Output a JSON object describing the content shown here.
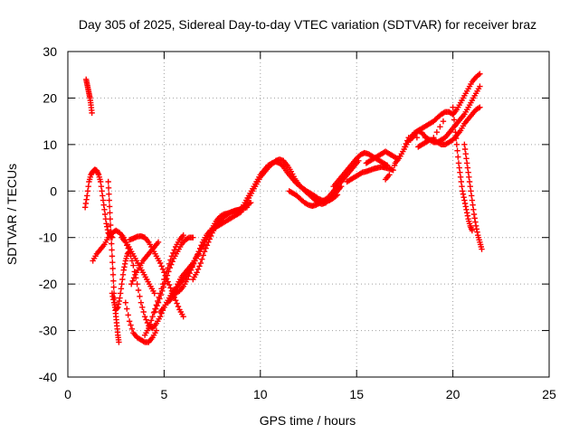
{
  "chart_data": {
    "type": "scatter",
    "title": "Day 305 of 2025, Sidereal Day-to-day VTEC variation (SDTVAR) for receiver braz",
    "xlabel": "GPS time / hours",
    "ylabel": "SDTVAR / TECUs",
    "xlim": [
      0,
      25
    ],
    "ylim": [
      -40,
      30
    ],
    "xticks": [
      0,
      5,
      10,
      15,
      20,
      25
    ],
    "yticks": [
      -40,
      -30,
      -20,
      -10,
      0,
      10,
      20,
      30
    ],
    "grid": true,
    "legend": "none",
    "marker": "+",
    "color": "#ff0000",
    "series": [
      {
        "x": [
          0.95,
          1.0,
          1.05,
          1.1,
          1.15,
          1.2,
          1.25
        ],
        "y": [
          24.0,
          23.0,
          22.0,
          21.0,
          20.0,
          18.5,
          16.8
        ]
      },
      {
        "x": [
          0.9,
          1.0,
          1.1,
          1.2,
          1.3,
          1.4,
          1.5,
          1.6,
          1.7,
          1.8,
          1.9,
          2.0,
          2.1,
          2.2,
          2.3
        ],
        "y": [
          -3.5,
          -1.0,
          2.0,
          3.5,
          4.2,
          4.6,
          4.4,
          3.5,
          2.0,
          -1.0,
          -4.0,
          -7.0,
          -9.0,
          -9.5,
          -10.0
        ]
      },
      {
        "x": [
          1.3,
          1.5,
          1.7,
          1.9,
          2.1,
          2.3,
          2.5,
          2.7,
          2.9,
          3.1,
          3.3,
          3.5,
          3.7,
          3.9,
          4.1,
          4.3,
          4.5
        ],
        "y": [
          -15.0,
          -13.5,
          -12.5,
          -11.5,
          -10.0,
          -9.0,
          -8.5,
          -9.0,
          -10.0,
          -11.5,
          -13.0,
          -14.5,
          -16.0,
          -17.5,
          -19.0,
          -20.5,
          -22.0
        ]
      },
      {
        "x": [
          2.1,
          2.15,
          2.2,
          2.25,
          2.3,
          2.35,
          2.4,
          2.45,
          2.5,
          2.55,
          2.6,
          2.65
        ],
        "y": [
          2.0,
          -2.0,
          -6.0,
          -10.0,
          -14.0,
          -18.0,
          -22.0,
          -25.0,
          -27.0,
          -29.0,
          -31.0,
          -32.5
        ]
      },
      {
        "x": [
          2.3,
          2.4,
          2.5,
          2.6,
          2.7,
          2.8,
          2.9,
          3.0,
          3.1,
          3.2
        ],
        "y": [
          -22.0,
          -24.0,
          -25.5,
          -25.0,
          -23.0,
          -20.0,
          -17.0,
          -15.0,
          -13.5,
          -13.0
        ]
      },
      {
        "x": [
          2.8,
          3.0,
          3.2,
          3.4,
          3.6,
          3.8,
          4.0,
          4.2,
          4.4,
          4.6,
          4.8,
          5.0
        ],
        "y": [
          -10.0,
          -11.0,
          -13.0,
          -16.0,
          -20.0,
          -24.0,
          -27.0,
          -29.0,
          -29.5,
          -28.5,
          -27.0,
          -25.0
        ]
      },
      {
        "x": [
          3.0,
          3.2,
          3.4,
          3.6,
          3.8,
          4.0,
          4.2,
          4.4,
          4.6
        ],
        "y": [
          -24.0,
          -28.0,
          -30.5,
          -31.5,
          -32.0,
          -32.5,
          -32.5,
          -31.5,
          -30.0
        ]
      },
      {
        "x": [
          3.3,
          3.5,
          3.7,
          3.9,
          4.1,
          4.3,
          4.5,
          4.7
        ],
        "y": [
          -20.0,
          -18.0,
          -16.5,
          -15.0,
          -14.0,
          -13.0,
          -12.0,
          -11.0
        ]
      },
      {
        "x": [
          3.2,
          3.4,
          3.6,
          3.8,
          4.0,
          4.2,
          4.4,
          4.6,
          4.8,
          5.0,
          5.2,
          5.4,
          5.6,
          5.8,
          6.0
        ],
        "y": [
          -10.5,
          -10.2,
          -9.8,
          -9.7,
          -10.0,
          -11.0,
          -12.5,
          -14.0,
          -15.5,
          -17.5,
          -19.5,
          -21.5,
          -23.5,
          -25.5,
          -27.0
        ]
      },
      {
        "x": [
          4.0,
          4.2,
          4.4,
          4.6,
          4.8,
          5.0,
          5.2,
          5.4,
          5.6,
          5.8,
          6.0
        ],
        "y": [
          -31.0,
          -29.5,
          -27.0,
          -24.5,
          -22.0,
          -19.0,
          -16.5,
          -14.0,
          -12.0,
          -10.5,
          -9.5
        ]
      },
      {
        "x": [
          4.5,
          4.7,
          4.9,
          5.1,
          5.3,
          5.5,
          5.7,
          5.9,
          6.1,
          6.3,
          6.5
        ],
        "y": [
          -26.0,
          -24.0,
          -21.5,
          -19.0,
          -16.5,
          -14.5,
          -13.0,
          -11.5,
          -10.5,
          -10.0,
          -10.0
        ]
      },
      {
        "x": [
          4.8,
          5.0,
          5.2,
          5.4,
          5.6,
          5.8,
          6.0,
          6.2,
          6.4,
          6.6,
          6.8,
          7.0,
          7.2,
          7.4,
          7.6,
          7.8,
          8.0
        ],
        "y": [
          -26.0,
          -25.0,
          -23.5,
          -22.0,
          -21.0,
          -20.0,
          -19.0,
          -18.0,
          -16.5,
          -15.0,
          -13.5,
          -12.0,
          -10.5,
          -9.0,
          -8.0,
          -7.0,
          -6.5
        ]
      },
      {
        "x": [
          5.2,
          5.4,
          5.6,
          5.8,
          6.0,
          6.2,
          6.4,
          6.6,
          6.8,
          7.0,
          7.2,
          7.4,
          7.6,
          7.8,
          8.0,
          8.2,
          8.4,
          8.6,
          8.8,
          9.0
        ],
        "y": [
          -24.0,
          -23.0,
          -22.0,
          -21.5,
          -20.5,
          -19.0,
          -17.0,
          -15.0,
          -13.0,
          -11.0,
          -9.5,
          -8.5,
          -8.0,
          -7.5,
          -7.0,
          -6.5,
          -6.0,
          -5.5,
          -5.0,
          -4.5
        ]
      },
      {
        "x": [
          5.5,
          5.7,
          5.9,
          6.1,
          6.3,
          6.5,
          6.7,
          6.9,
          7.1,
          7.3,
          7.5,
          7.7,
          7.9,
          8.1,
          8.3,
          8.5,
          8.7,
          8.9,
          9.1,
          9.3
        ],
        "y": [
          -22.0,
          -20.0,
          -18.5,
          -17.5,
          -16.5,
          -15.5,
          -14.0,
          -12.5,
          -11.0,
          -9.5,
          -8.0,
          -6.5,
          -5.5,
          -5.0,
          -4.8,
          -4.5,
          -4.2,
          -4.0,
          -3.8,
          -3.5
        ]
      },
      {
        "x": [
          6.5,
          6.7,
          6.9,
          7.1,
          7.3,
          7.5,
          7.7,
          7.9,
          8.1,
          8.3,
          8.5,
          8.7,
          8.9,
          9.1,
          9.3,
          9.5
        ],
        "y": [
          -19.0,
          -17.5,
          -15.5,
          -13.0,
          -11.0,
          -9.0,
          -7.5,
          -6.5,
          -5.5,
          -5.0,
          -4.5,
          -4.2,
          -4.0,
          -3.5,
          -3.0,
          -2.5
        ]
      },
      {
        "x": [
          9.0,
          9.2,
          9.4,
          9.6,
          9.8,
          10.0,
          10.2,
          10.4,
          10.6,
          10.8,
          11.0,
          11.2,
          11.4,
          11.6,
          11.8,
          12.0,
          12.2,
          12.4,
          12.6,
          12.8,
          13.0,
          13.2,
          13.4,
          13.6,
          13.8,
          14.0
        ],
        "y": [
          -4.0,
          -2.5,
          -1.0,
          0.5,
          2.0,
          3.5,
          4.5,
          5.5,
          6.0,
          6.3,
          6.0,
          5.2,
          4.0,
          3.0,
          2.0,
          1.2,
          0.6,
          0.0,
          -0.5,
          -1.0,
          -1.6,
          -2.0,
          -2.2,
          -2.0,
          -1.5,
          -0.8
        ]
      },
      {
        "x": [
          9.2,
          9.4,
          9.6,
          9.8,
          10.0,
          10.2,
          10.4,
          10.6,
          10.8,
          11.0,
          11.2,
          11.4,
          11.6,
          11.8,
          12.0,
          12.2,
          12.4,
          12.6,
          12.8,
          13.0,
          13.2,
          13.4,
          13.6,
          13.8,
          14.0,
          14.2
        ],
        "y": [
          -3.0,
          -1.5,
          0.0,
          1.5,
          3.0,
          4.0,
          5.0,
          5.8,
          6.5,
          6.8,
          6.5,
          5.5,
          4.2,
          2.6,
          1.4,
          0.5,
          -0.3,
          -1.0,
          -1.8,
          -2.5,
          -2.8,
          -2.5,
          -1.8,
          -1.0,
          0.0,
          1.0
        ]
      },
      {
        "x": [
          11.5,
          11.7,
          11.9,
          12.1,
          12.3,
          12.5,
          12.7,
          12.9,
          13.1,
          13.3,
          13.5,
          13.7,
          13.9,
          14.1,
          14.3,
          14.5,
          14.7,
          14.9,
          15.1
        ],
        "y": [
          0.0,
          -0.5,
          -1.0,
          -1.8,
          -2.5,
          -3.0,
          -3.2,
          -3.0,
          -2.5,
          -2.0,
          -1.5,
          -0.5,
          0.5,
          1.5,
          2.5,
          3.5,
          4.5,
          5.5,
          6.5
        ]
      },
      {
        "x": [
          13.8,
          14.0,
          14.2,
          14.4,
          14.6,
          14.8,
          15.0,
          15.2,
          15.4,
          15.6,
          15.8,
          16.0,
          16.2,
          16.4,
          16.6
        ],
        "y": [
          1.0,
          2.0,
          3.0,
          4.0,
          5.0,
          6.0,
          7.0,
          7.8,
          8.2,
          8.0,
          7.5,
          7.0,
          6.5,
          6.0,
          5.5
        ]
      },
      {
        "x": [
          14.5,
          14.7,
          14.9,
          15.1,
          15.3,
          15.5,
          15.7,
          15.9,
          16.1,
          16.3,
          16.5,
          16.7,
          16.9
        ],
        "y": [
          2.0,
          2.5,
          3.0,
          3.5,
          4.0,
          4.2,
          4.5,
          4.8,
          5.0,
          5.2,
          5.0,
          4.8,
          4.5
        ]
      },
      {
        "x": [
          15.5,
          15.7,
          15.9,
          16.1,
          16.3,
          16.5,
          16.7,
          16.9,
          17.1
        ],
        "y": [
          6.0,
          6.5,
          7.0,
          7.5,
          8.0,
          8.5,
          8.0,
          7.5,
          7.0
        ]
      },
      {
        "x": [
          17.0,
          17.2,
          17.4,
          17.6,
          17.8,
          18.0,
          18.2,
          18.4,
          18.6,
          18.8,
          19.0,
          19.2,
          19.4,
          19.6,
          19.8,
          20.0,
          20.2,
          20.4,
          20.6,
          20.8,
          21.0,
          21.2,
          21.4
        ],
        "y": [
          6.0,
          7.0,
          8.5,
          10.0,
          11.5,
          12.5,
          13.0,
          13.5,
          14.0,
          14.5,
          15.0,
          15.8,
          16.5,
          17.0,
          17.0,
          16.5,
          17.5,
          19.0,
          20.5,
          22.0,
          23.5,
          24.5,
          25.2
        ]
      },
      {
        "x": [
          17.8,
          18.0,
          18.2,
          18.4,
          18.6,
          18.8,
          19.0,
          19.2,
          19.4,
          19.6,
          19.8,
          20.0,
          20.2,
          20.4,
          20.6,
          20.8,
          21.0,
          21.2,
          21.4
        ],
        "y": [
          11.0,
          12.0,
          13.0,
          12.5,
          11.5,
          11.0,
          10.5,
          10.5,
          11.0,
          11.5,
          12.5,
          13.5,
          14.5,
          15.5,
          16.5,
          18.0,
          19.5,
          21.0,
          22.5
        ]
      },
      {
        "x": [
          18.2,
          18.4,
          18.6,
          18.8,
          19.0,
          19.2,
          19.4,
          19.6,
          19.8,
          20.0,
          20.2,
          20.4,
          20.6,
          20.8,
          21.0,
          21.2,
          21.4
        ],
        "y": [
          9.5,
          10.0,
          10.5,
          11.0,
          11.0,
          10.5,
          10.0,
          10.0,
          10.5,
          11.0,
          12.0,
          13.0,
          14.5,
          15.5,
          16.5,
          17.5,
          18.0
        ]
      },
      {
        "x": [
          20.0,
          20.1,
          20.2,
          20.3,
          20.4,
          20.5,
          20.6,
          20.7,
          20.8,
          20.9,
          21.0
        ],
        "y": [
          18.0,
          14.0,
          10.0,
          6.0,
          3.0,
          0.0,
          -2.0,
          -4.0,
          -6.0,
          -7.5,
          -8.5
        ]
      },
      {
        "x": [
          20.6,
          20.7,
          20.8,
          20.9,
          21.0,
          21.1,
          21.2,
          21.3,
          21.4,
          21.5
        ],
        "y": [
          10.0,
          7.0,
          4.0,
          1.0,
          -2.0,
          -5.0,
          -7.5,
          -9.5,
          -11.0,
          -12.5
        ]
      },
      {
        "x": [
          16.5,
          16.7,
          17.5,
          17.7,
          19.0,
          19.5
        ],
        "y": [
          2.5,
          3.5,
          9.5,
          11.5,
          11.5,
          15.0
        ]
      }
    ]
  }
}
